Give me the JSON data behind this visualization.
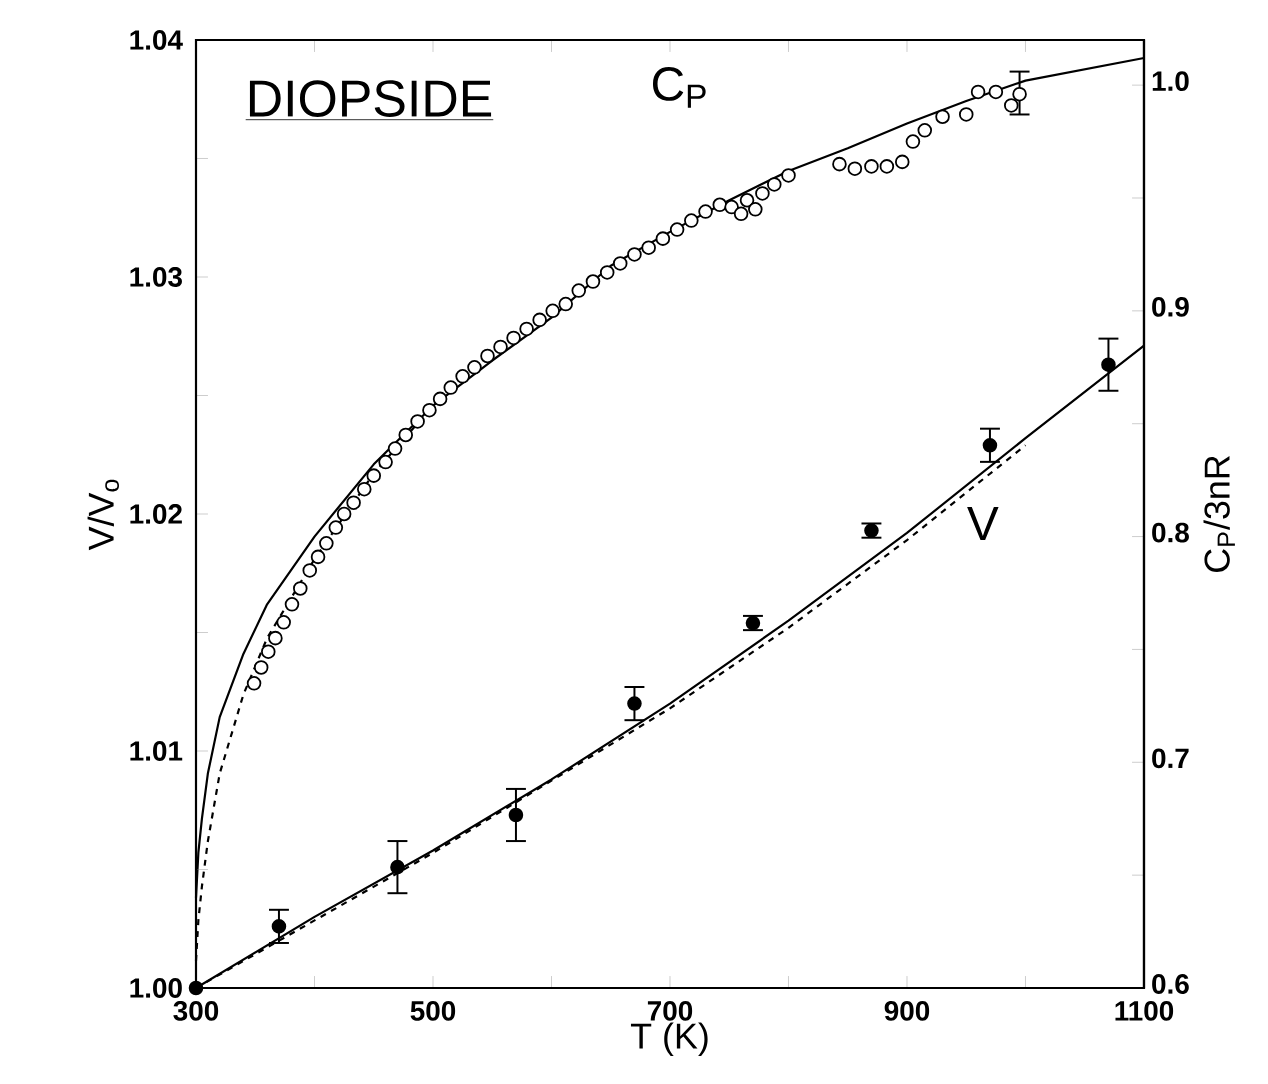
{
  "chart_data": {
    "type": "line",
    "xlabel": "T (K)",
    "ylabel": "V/V$_{o}$",
    "y2label": "C$_{P}$/3nR",
    "annotations": [
      "DIOPSIDE",
      "C$_{P}$",
      "V"
    ],
    "xlim": [
      300,
      1100
    ],
    "ylim": [
      1.0,
      1.04
    ],
    "y2lim": [
      0.6,
      1.02
    ],
    "xticks": [
      300,
      {
        "value": 400,
        "label": null
      },
      500,
      {
        "value": 600,
        "label": null
      },
      700,
      {
        "value": 800,
        "label": null
      },
      900,
      {
        "value": 1000,
        "label": null
      },
      1100
    ],
    "yticks": [
      {
        "value": 1.0,
        "label": "1.00"
      },
      {
        "value": 1.005,
        "label": null
      },
      {
        "value": 1.01,
        "label": "1.01"
      },
      {
        "value": 1.015,
        "label": null
      },
      {
        "value": 1.02,
        "label": "1.02"
      },
      {
        "value": 1.025,
        "label": null
      },
      {
        "value": 1.03,
        "label": "1.03"
      },
      {
        "value": 1.035,
        "label": null
      },
      {
        "value": 1.04,
        "label": "1.04"
      }
    ],
    "y2ticks": [
      0.6,
      {
        "value": 0.65,
        "label": null
      },
      0.7,
      {
        "value": 0.75,
        "label": null
      },
      0.8,
      {
        "value": 0.85,
        "label": null
      },
      0.9,
      {
        "value": 0.95,
        "label": null
      },
      {
        "value": 1.0,
        "label": "1.0"
      }
    ],
    "series": [
      {
        "type": "scatter",
        "axis": "y2",
        "marker": "circle",
        "color": "#000000",
        "x": [
          349,
          355,
          361,
          367,
          374,
          381,
          388,
          396,
          403,
          410,
          418,
          425,
          433,
          442,
          450,
          460,
          468,
          477,
          487,
          497,
          506,
          515,
          525,
          535,
          546,
          557,
          568,
          579,
          590,
          601,
          612,
          623,
          635,
          647,
          658,
          670,
          682,
          694,
          706,
          718,
          730,
          742,
          752,
          760,
          765,
          772,
          778,
          788,
          800,
          843,
          856,
          870,
          883,
          896,
          905,
          915,
          930,
          950,
          960,
          975,
          988,
          995
        ],
        "values": [
          0.735,
          0.742,
          0.749,
          0.755,
          0.762,
          0.77,
          0.777,
          0.785,
          0.791,
          0.797,
          0.804,
          0.81,
          0.815,
          0.821,
          0.827,
          0.833,
          0.839,
          0.845,
          0.851,
          0.856,
          0.861,
          0.866,
          0.871,
          0.875,
          0.88,
          0.884,
          0.888,
          0.892,
          0.896,
          0.9,
          0.903,
          0.909,
          0.913,
          0.917,
          0.921,
          0.925,
          0.928,
          0.932,
          0.936,
          0.94,
          0.944,
          0.947,
          0.946,
          0.943,
          0.949,
          0.945,
          0.952,
          0.956,
          0.96,
          0.965,
          0.963,
          0.964,
          0.964,
          0.966,
          0.975,
          0.98,
          0.986,
          0.987,
          0.997,
          0.997,
          0.991,
          0.996
        ],
        "errors": [
          null,
          null,
          null,
          null,
          null,
          null,
          null,
          null,
          null,
          null,
          null,
          null,
          null,
          null,
          null,
          null,
          null,
          null,
          null,
          null,
          null,
          null,
          null,
          null,
          null,
          null,
          null,
          null,
          null,
          null,
          null,
          null,
          null,
          null,
          null,
          null,
          null,
          null,
          null,
          null,
          null,
          null,
          null,
          null,
          null,
          null,
          null,
          null,
          null,
          null,
          null,
          null,
          null,
          null,
          null,
          null,
          null,
          null,
          null,
          null,
          null,
          [
            0.987,
            1.006
          ]
        ]
      },
      {
        "axis": "y2",
        "marker": "none",
        "line_style": "solid",
        "color": "#000000",
        "x": [
          300,
          302,
          305,
          310,
          320,
          340,
          360,
          400,
          450,
          500,
          550,
          600,
          650,
          700,
          750,
          800,
          850,
          900,
          950,
          1000,
          1050,
          1100
        ],
        "values": [
          0.64,
          0.66,
          0.675,
          0.695,
          0.72,
          0.748,
          0.77,
          0.8,
          0.832,
          0.858,
          0.878,
          0.897,
          0.92,
          0.935,
          0.949,
          0.962,
          0.972,
          0.983,
          0.993,
          1.002,
          1.007,
          1.012
        ]
      },
      {
        "axis": "y2",
        "marker": "none",
        "line_style": "dashed",
        "color": "#000000",
        "x": [
          300,
          302,
          305,
          310,
          320,
          340,
          360,
          400,
          450,
          500
        ],
        "values": [
          0.612,
          0.63,
          0.645,
          0.665,
          0.695,
          0.73,
          0.755,
          0.79,
          0.828,
          0.858
        ]
      },
      {
        "type": "scatter",
        "axis": "y",
        "marker": "circle",
        "color": "#000000",
        "x": [
          300,
          370,
          470,
          570,
          670,
          770,
          870,
          970,
          1070
        ],
        "values": [
          1.0,
          1.0026,
          1.0051,
          1.0073,
          1.012,
          1.0154,
          1.0193,
          1.0229,
          1.0263
        ],
        "errors": [
          null,
          0.0007,
          0.0011,
          0.0011,
          0.0007,
          0.0003,
          0.0003,
          0.0007,
          0.0011
        ]
      },
      {
        "axis": "y",
        "marker": "none",
        "line_style": "solid",
        "color": "#000000",
        "x": [
          300,
          400,
          500,
          600,
          700,
          800,
          900,
          1000,
          1100
        ],
        "values": [
          1.0,
          1.003,
          1.0058,
          1.0088,
          1.012,
          1.0155,
          1.0192,
          1.0232,
          1.0271
        ]
      },
      {
        "axis": "y",
        "marker": "none",
        "line_style": "dashed",
        "color": "#000000",
        "x": [
          300,
          500,
          700,
          800,
          900,
          1000
        ],
        "values": [
          1.0,
          1.0057,
          1.0118,
          1.0152,
          1.0189,
          1.0229
        ]
      }
    ]
  }
}
